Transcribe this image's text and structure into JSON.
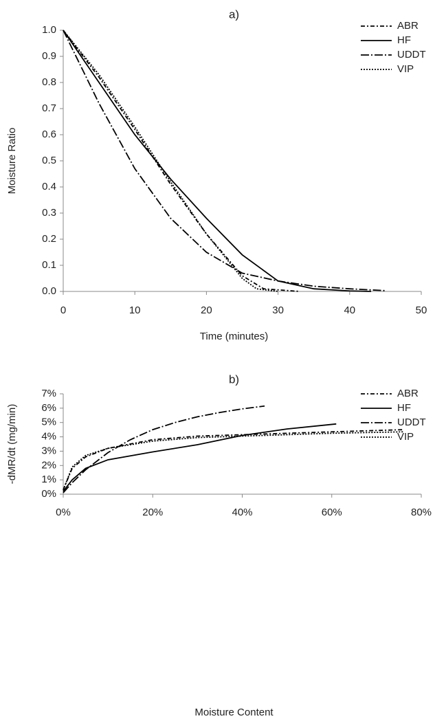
{
  "chart_data": [
    {
      "type": "line",
      "title": "a)",
      "xlabel": "Time (minutes)",
      "ylabel": "Moisture Ratio",
      "xlim": [
        0,
        50
      ],
      "xticks": [
        0,
        10,
        20,
        30,
        40,
        50
      ],
      "ylim": [
        0,
        1
      ],
      "yticks": [
        {
          "value": 0,
          "label": "0.0"
        },
        0.1,
        0.2,
        0.3,
        0.4,
        0.5,
        0.6,
        0.7,
        0.8,
        0.9,
        {
          "value": 1,
          "label": "1.0"
        }
      ],
      "legend": "top-right",
      "grid": false,
      "series": [
        {
          "name": "ABR",
          "color": "#000000",
          "dash": "dash-dot",
          "x": [
            0,
            5,
            10,
            15,
            20,
            25,
            28,
            33
          ],
          "values": [
            1,
            0.82,
            0.62,
            0.41,
            0.22,
            0.06,
            0.01,
            0
          ]
        },
        {
          "name": "HF",
          "color": "#000000",
          "dash": "solid",
          "x": [
            0,
            5,
            10,
            15,
            20,
            25,
            30,
            35,
            40,
            43
          ],
          "values": [
            1,
            0.8,
            0.6,
            0.43,
            0.28,
            0.14,
            0.04,
            0.01,
            0.002,
            0
          ]
        },
        {
          "name": "UDDT",
          "color": "#000000",
          "dash": "long-dash-dot",
          "x": [
            0,
            5,
            10,
            15,
            20,
            25,
            30,
            35,
            40,
            45
          ],
          "values": [
            1,
            0.72,
            0.47,
            0.28,
            0.15,
            0.07,
            0.04,
            0.02,
            0.01,
            0.003
          ]
        },
        {
          "name": "VIP",
          "color": "#000000",
          "dash": "dotted",
          "x": [
            0,
            5,
            10,
            15,
            20,
            25,
            27,
            30
          ],
          "values": [
            1,
            0.83,
            0.63,
            0.42,
            0.22,
            0.05,
            0.01,
            0
          ]
        }
      ]
    },
    {
      "type": "line",
      "title": "b)",
      "xlabel": "Moisture Content",
      "ylabel": "-dMR/dt (mg/min)",
      "xlim": [
        0,
        80
      ],
      "xticks": [
        {
          "value": 0,
          "label": "0%"
        },
        {
          "value": 20,
          "label": "20%"
        },
        {
          "value": 40,
          "label": "40%"
        },
        {
          "value": 60,
          "label": "60%"
        },
        {
          "value": 80,
          "label": "80%"
        }
      ],
      "ylim": [
        0,
        7
      ],
      "yticks": [
        {
          "value": 0,
          "label": "0%"
        },
        {
          "value": 1,
          "label": "1%"
        },
        {
          "value": 2,
          "label": "2%"
        },
        {
          "value": 3,
          "label": "3%"
        },
        {
          "value": 4,
          "label": "4%"
        },
        {
          "value": 5,
          "label": "5%"
        },
        {
          "value": 6,
          "label": "6%"
        },
        {
          "value": 7,
          "label": "7%"
        }
      ],
      "legend": "top-right",
      "grid": false,
      "series": [
        {
          "name": "ABR",
          "color": "#000000",
          "dash": "dash-dot",
          "x": [
            0,
            2,
            5,
            10,
            20,
            30,
            40,
            50,
            60,
            76
          ],
          "values": [
            0.3,
            1.8,
            2.6,
            3.2,
            3.8,
            4.05,
            4.15,
            4.25,
            4.35,
            4.5
          ]
        },
        {
          "name": "HF",
          "color": "#000000",
          "dash": "solid",
          "x": [
            0,
            2,
            5,
            10,
            20,
            30,
            40,
            50,
            61
          ],
          "values": [
            0.2,
            1.0,
            1.8,
            2.4,
            2.95,
            3.45,
            4.1,
            4.55,
            4.9
          ]
        },
        {
          "name": "UDDT",
          "color": "#000000",
          "dash": "long-dash-dot",
          "x": [
            0,
            2,
            5,
            10,
            15,
            20,
            25,
            30,
            35,
            40,
            45
          ],
          "values": [
            0.1,
            0.8,
            1.7,
            2.9,
            3.8,
            4.5,
            5.0,
            5.4,
            5.7,
            5.95,
            6.15
          ]
        },
        {
          "name": "VIP",
          "color": "#000000",
          "dash": "dotted",
          "x": [
            0,
            2,
            5,
            10,
            20,
            30,
            40,
            50,
            60,
            76
          ],
          "values": [
            0.3,
            1.9,
            2.7,
            3.2,
            3.7,
            3.95,
            4.05,
            4.15,
            4.25,
            4.35
          ]
        }
      ]
    }
  ]
}
